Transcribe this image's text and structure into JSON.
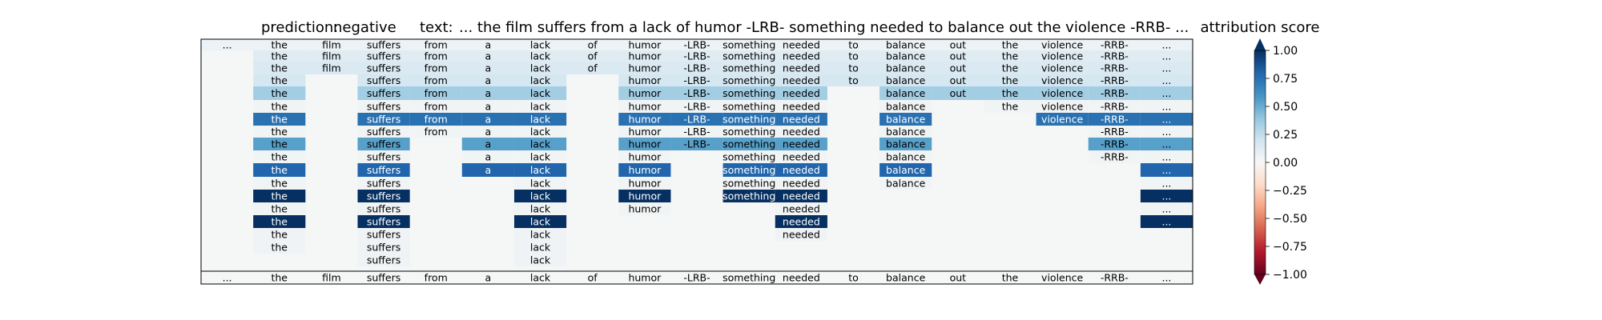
{
  "chart_data": {
    "type": "heatmap",
    "title_prediction_label": "prediction:",
    "title_prediction_value": "negative",
    "title_text_label": "text:",
    "title_text_value": "... the film suffers from a lack of humor -LRB- something needed to balance out the violence -RRB- ...",
    "colorbar_title": "attribution score",
    "colorbar_range": [
      -1.0,
      1.0
    ],
    "colorbar_ticks": [
      "1.00",
      "0.75",
      "0.50",
      "0.25",
      "0.00",
      "−0.25",
      "−0.50",
      "−0.75",
      "−1.00"
    ],
    "colormap": "RdBu",
    "tokens": [
      "...",
      "the",
      "film",
      "suffers",
      "from",
      "a",
      "lack",
      "of",
      "humor",
      "-LRB-",
      "something",
      "needed",
      "to",
      "balance",
      "out",
      "the",
      "violence",
      "-RRB-",
      "..."
    ],
    "rows": [
      [
        0.05,
        0.05,
        0.05,
        0.05,
        0.05,
        0.05,
        0.05,
        0.05,
        0.05,
        0.05,
        0.05,
        0.05,
        0.05,
        0.05,
        0.05,
        0.05,
        0.05,
        0.05,
        0.05
      ],
      [
        null,
        0.12,
        0.12,
        0.12,
        0.12,
        0.12,
        0.12,
        0.12,
        0.12,
        0.12,
        0.12,
        0.12,
        0.12,
        0.12,
        0.12,
        0.12,
        0.12,
        0.12,
        0.12
      ],
      [
        null,
        0.15,
        0.15,
        0.15,
        0.15,
        0.15,
        0.15,
        0.15,
        0.15,
        0.15,
        0.15,
        0.15,
        0.15,
        0.15,
        0.15,
        0.15,
        0.15,
        0.15,
        0.15
      ],
      [
        null,
        0.18,
        null,
        0.18,
        0.18,
        0.18,
        0.18,
        null,
        0.18,
        0.18,
        0.18,
        0.18,
        0.18,
        0.18,
        0.18,
        0.18,
        0.18,
        0.18,
        0.18
      ],
      [
        null,
        0.35,
        null,
        0.35,
        0.35,
        0.35,
        0.35,
        null,
        0.35,
        0.35,
        0.35,
        0.35,
        null,
        0.35,
        0.35,
        0.35,
        0.35,
        0.35,
        0.35
      ],
      [
        null,
        0.02,
        null,
        0.02,
        0.02,
        0.02,
        0.02,
        null,
        0.02,
        0.02,
        0.02,
        0.02,
        null,
        0.02,
        null,
        0.02,
        0.02,
        0.02,
        0.02
      ],
      [
        null,
        0.75,
        null,
        0.75,
        0.75,
        0.75,
        0.75,
        null,
        0.75,
        0.75,
        0.75,
        0.75,
        null,
        0.75,
        null,
        null,
        0.75,
        0.75,
        0.75
      ],
      [
        null,
        0.02,
        null,
        0.02,
        0.02,
        0.02,
        0.02,
        null,
        0.02,
        0.02,
        0.02,
        0.02,
        null,
        0.02,
        null,
        null,
        null,
        0.02,
        0.02
      ],
      [
        null,
        0.55,
        null,
        0.55,
        null,
        0.55,
        0.55,
        null,
        0.55,
        0.55,
        0.55,
        0.55,
        null,
        0.55,
        null,
        null,
        null,
        0.55,
        0.55
      ],
      [
        null,
        0.02,
        null,
        0.02,
        null,
        0.02,
        0.02,
        null,
        0.02,
        null,
        0.02,
        0.02,
        null,
        0.02,
        null,
        null,
        null,
        0.02,
        0.02
      ],
      [
        null,
        0.8,
        null,
        0.8,
        null,
        0.8,
        0.8,
        null,
        0.8,
        null,
        0.8,
        0.8,
        null,
        0.8,
        null,
        null,
        null,
        null,
        0.8
      ],
      [
        null,
        0.02,
        null,
        0.02,
        null,
        null,
        0.02,
        null,
        0.02,
        null,
        0.02,
        0.02,
        null,
        0.02,
        null,
        null,
        null,
        null,
        0.02
      ],
      [
        null,
        1.0,
        null,
        1.0,
        null,
        null,
        1.0,
        null,
        1.0,
        null,
        1.0,
        1.0,
        null,
        null,
        null,
        null,
        null,
        null,
        1.0
      ],
      [
        null,
        0.02,
        null,
        0.02,
        null,
        null,
        0.02,
        null,
        0.02,
        null,
        null,
        0.02,
        null,
        null,
        null,
        null,
        null,
        null,
        0.02
      ],
      [
        null,
        1.0,
        null,
        1.0,
        null,
        null,
        1.0,
        null,
        null,
        null,
        null,
        1.0,
        null,
        null,
        null,
        null,
        null,
        null,
        1.0
      ],
      [
        null,
        0.03,
        null,
        0.03,
        null,
        null,
        0.03,
        null,
        null,
        null,
        null,
        0.03,
        null,
        null,
        null,
        null,
        null,
        null,
        null
      ],
      [
        null,
        0.03,
        null,
        0.03,
        null,
        null,
        0.03,
        null,
        null,
        null,
        null,
        null,
        null,
        null,
        null,
        null,
        null,
        null,
        null
      ],
      [
        null,
        null,
        null,
        0.03,
        null,
        null,
        0.03,
        null,
        null,
        null,
        null,
        null,
        null,
        null,
        null,
        null,
        null,
        null,
        null
      ],
      [
        0.0,
        0.0,
        0.0,
        0.0,
        0.0,
        0.0,
        0.0,
        0.0,
        0.0,
        0.0,
        0.0,
        0.0,
        0.0,
        0.0,
        0.0,
        0.0,
        0.0,
        0.0,
        0.0
      ]
    ]
  }
}
